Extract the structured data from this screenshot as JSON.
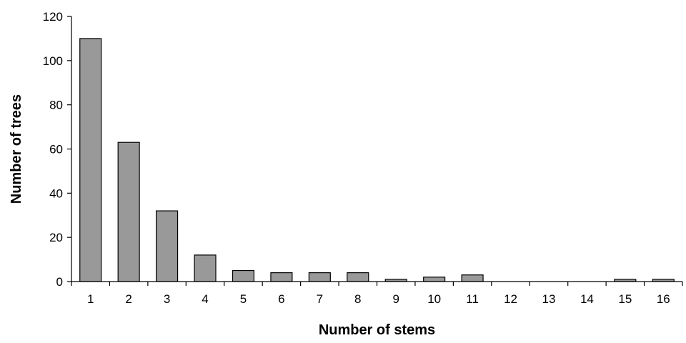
{
  "chart_data": {
    "type": "bar",
    "categories": [
      "1",
      "2",
      "3",
      "4",
      "5",
      "6",
      "7",
      "8",
      "9",
      "10",
      "11",
      "12",
      "13",
      "14",
      "15",
      "16"
    ],
    "values": [
      110,
      63,
      32,
      12,
      5,
      4,
      4,
      4,
      1,
      2,
      3,
      0,
      0,
      0,
      1,
      1
    ],
    "xlabel": "Number of stems",
    "ylabel": "Number of trees",
    "ylim": [
      0,
      120
    ],
    "yticks": [
      0,
      20,
      40,
      60,
      80,
      100,
      120
    ],
    "grid": false,
    "colors": {
      "bar_fill": "#999999",
      "bar_stroke": "#000000"
    }
  }
}
